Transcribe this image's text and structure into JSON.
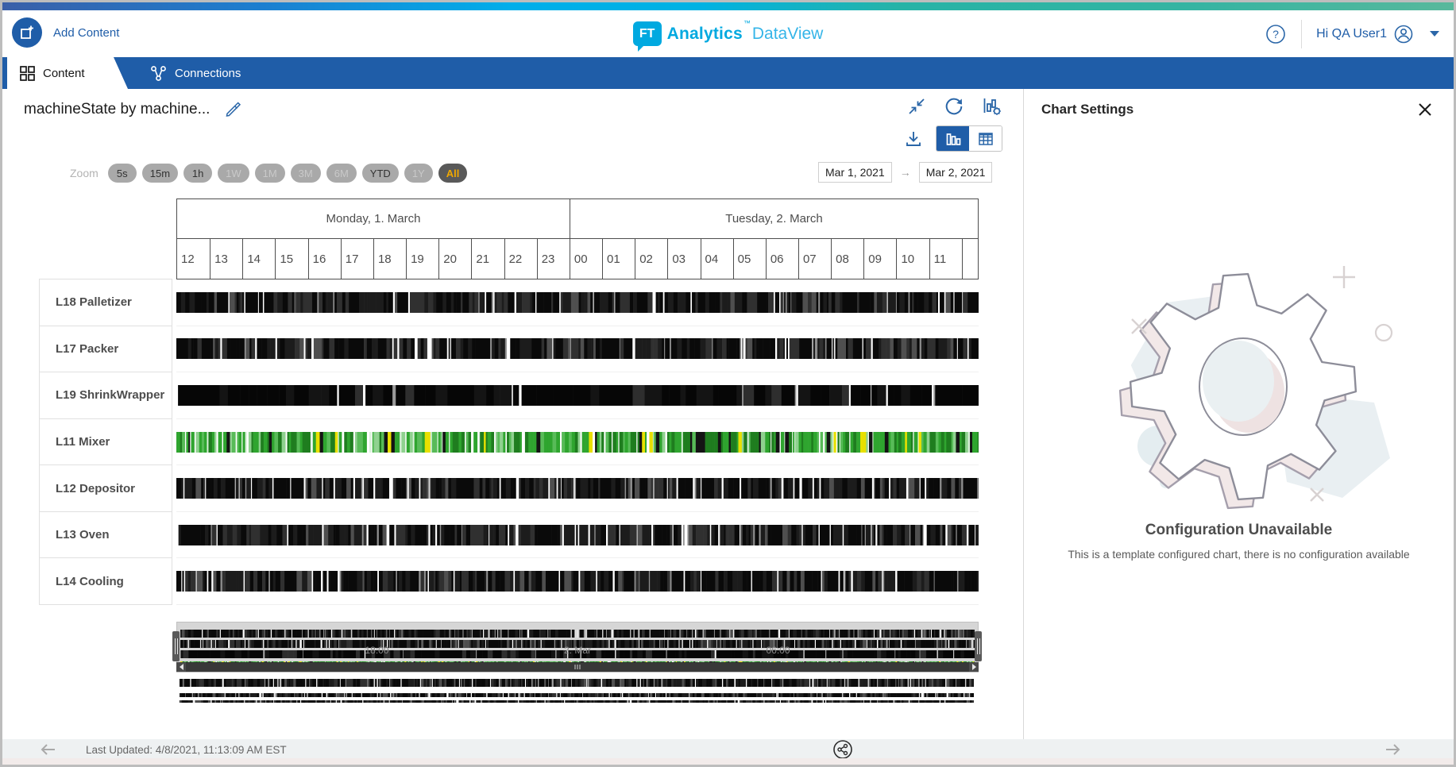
{
  "header": {
    "add_content_label": "Add Content",
    "logo": {
      "mark": "FT",
      "brand": "Analytics",
      "tm": "™",
      "product": "DataView"
    },
    "user_greeting": "Hi QA User1"
  },
  "tabs": [
    {
      "label": "Content",
      "active": true
    },
    {
      "label": "Connections",
      "active": false
    }
  ],
  "chart_panel": {
    "title": "machineState by machine...",
    "zoom": {
      "label": "Zoom",
      "buttons": [
        {
          "label": "5s",
          "state": "enabled"
        },
        {
          "label": "15m",
          "state": "enabled"
        },
        {
          "label": "1h",
          "state": "enabled"
        },
        {
          "label": "1W",
          "state": "disabled"
        },
        {
          "label": "1M",
          "state": "disabled"
        },
        {
          "label": "3M",
          "state": "disabled"
        },
        {
          "label": "6M",
          "state": "disabled"
        },
        {
          "label": "YTD",
          "state": "enabled"
        },
        {
          "label": "1Y",
          "state": "disabled"
        },
        {
          "label": "All",
          "state": "selected"
        }
      ]
    },
    "date_range": {
      "from": "Mar 1, 2021",
      "separator": "→",
      "to": "Mar 2, 2021"
    }
  },
  "chart_data": {
    "type": "state-timeline",
    "title": "machineState by machine",
    "x_start": "Monday, 1. March 2021 12:00",
    "x_end": "Tuesday, 2. March 2021 12:00",
    "day_groups": [
      {
        "label": "Monday, 1. March",
        "hours": [
          "12",
          "13",
          "14",
          "15",
          "16",
          "17",
          "18",
          "19",
          "20",
          "21",
          "22",
          "23"
        ]
      },
      {
        "label": "Tuesday, 2. March",
        "hours": [
          "00",
          "01",
          "02",
          "03",
          "04",
          "05",
          "06",
          "07",
          "08",
          "09",
          "10",
          "11"
        ]
      }
    ],
    "machines": [
      {
        "name": "L18 Palletizer",
        "pattern": "dense-black-state-stripes",
        "seed": 101,
        "stripe_w": [
          2,
          7
        ],
        "palette": [
          [
            "#0a0a0a",
            0.4,
            "state"
          ],
          [
            "#1c1c1c",
            0.2,
            "state"
          ],
          [
            "#303030",
            0.13,
            "state"
          ],
          [
            "#4f4f4f",
            0.07,
            "state"
          ],
          [
            "#8f8f8f",
            0.06,
            "gap"
          ],
          [
            "#ffffff",
            0.14,
            "gap"
          ]
        ]
      },
      {
        "name": "L17 Packer",
        "pattern": "dense-black-state-stripes",
        "seed": 202,
        "stripe_w": [
          2,
          7
        ],
        "palette": [
          [
            "#0a0a0a",
            0.4,
            "state"
          ],
          [
            "#1c1c1c",
            0.2,
            "state"
          ],
          [
            "#303030",
            0.13,
            "state"
          ],
          [
            "#4f4f4f",
            0.07,
            "state"
          ],
          [
            "#8f8f8f",
            0.06,
            "gap"
          ],
          [
            "#ffffff",
            0.14,
            "gap"
          ]
        ]
      },
      {
        "name": "L19 ShrinkWrapper",
        "pattern": "mostly-solid-black",
        "seed": 303,
        "stripe_w": [
          5,
          16
        ],
        "palette": [
          [
            "#060606",
            0.62,
            "state"
          ],
          [
            "#141414",
            0.18,
            "state"
          ],
          [
            "#2e2e2e",
            0.08,
            "state"
          ],
          [
            "#9a9a9a",
            0.05,
            "gap"
          ],
          [
            "#ffffff",
            0.07,
            "gap"
          ]
        ]
      },
      {
        "name": "L11 Mixer",
        "pattern": "dense-green-state-stripes",
        "seed": 404,
        "stripe_w": [
          2,
          5
        ],
        "palette": [
          [
            "#1f7d1f",
            0.24,
            "state"
          ],
          [
            "#2fa52f",
            0.22,
            "state"
          ],
          [
            "#58bb58",
            0.14,
            "state"
          ],
          [
            "#8fd18f",
            0.08,
            "state"
          ],
          [
            "#ffffff",
            0.14,
            "gap"
          ],
          [
            "#e8e000",
            0.07,
            "state"
          ],
          [
            "#d9f0d9",
            0.05,
            "gap"
          ],
          [
            "#141414",
            0.06,
            "state"
          ]
        ]
      },
      {
        "name": "L12 Depositor",
        "pattern": "dense-black-state-stripes",
        "seed": 505,
        "stripe_w": [
          2,
          7
        ],
        "palette": [
          [
            "#0a0a0a",
            0.4,
            "state"
          ],
          [
            "#1c1c1c",
            0.2,
            "state"
          ],
          [
            "#303030",
            0.13,
            "state"
          ],
          [
            "#4f4f4f",
            0.07,
            "state"
          ],
          [
            "#8f8f8f",
            0.06,
            "gap"
          ],
          [
            "#ffffff",
            0.14,
            "gap"
          ]
        ]
      },
      {
        "name": "L13 Oven",
        "pattern": "dense-black-state-stripes",
        "seed": 606,
        "stripe_w": [
          2,
          7
        ],
        "palette": [
          [
            "#0a0a0a",
            0.4,
            "state"
          ],
          [
            "#1c1c1c",
            0.2,
            "state"
          ],
          [
            "#303030",
            0.13,
            "state"
          ],
          [
            "#4f4f4f",
            0.07,
            "state"
          ],
          [
            "#8f8f8f",
            0.06,
            "gap"
          ],
          [
            "#ffffff",
            0.14,
            "gap"
          ]
        ]
      },
      {
        "name": "L14 Cooling",
        "pattern": "dense-black-state-stripes",
        "seed": 707,
        "stripe_w": [
          2,
          7
        ],
        "palette": [
          [
            "#0a0a0a",
            0.4,
            "state"
          ],
          [
            "#1c1c1c",
            0.2,
            "state"
          ],
          [
            "#303030",
            0.13,
            "state"
          ],
          [
            "#4f4f4f",
            0.07,
            "state"
          ],
          [
            "#8f8f8f",
            0.06,
            "gap"
          ],
          [
            "#ffffff",
            0.14,
            "gap"
          ]
        ]
      }
    ],
    "navigator": {
      "tick_labels": [
        "18:00",
        "2. Mar",
        "06:00"
      ],
      "tick_positions": [
        0.25,
        0.5,
        0.75
      ]
    },
    "legend": "none",
    "state_colors": {
      "running_green": "#2fa52f",
      "stopped_black": "#0a0a0a",
      "warning_yellow": "#e8e000"
    }
  },
  "settings_panel": {
    "title": "Chart Settings",
    "empty_state": {
      "title": "Configuration Unavailable",
      "message": "This is a template configured chart, there is no configuration available"
    }
  },
  "footer": {
    "last_updated": "Last Updated: 4/8/2021, 11:13:09 AM EST"
  },
  "icons": {
    "help_glyph": "?",
    "names": [
      "add-content-icon",
      "grid-icon",
      "connections-icon",
      "help-icon",
      "user-icon",
      "caret-down-icon",
      "edit-pencil-icon",
      "collapse-icon",
      "refresh-icon",
      "chart-settings-icon",
      "download-icon",
      "bar-chart-icon",
      "table-icon",
      "close-icon",
      "share-icon",
      "back-arrow-icon",
      "forward-arrow-icon",
      "navigator-handle",
      "scroll-arrow"
    ]
  },
  "colors": {
    "brand_blue": "#1f5da8",
    "logo_cyan": "#00a9e0",
    "zoom_selected_bg": "#595959",
    "zoom_selected_text": "#f0a800",
    "pill_gray": "#a9a9a9",
    "axis_border": "#4d4d4d",
    "footer_bg": "#eef1f2"
  }
}
